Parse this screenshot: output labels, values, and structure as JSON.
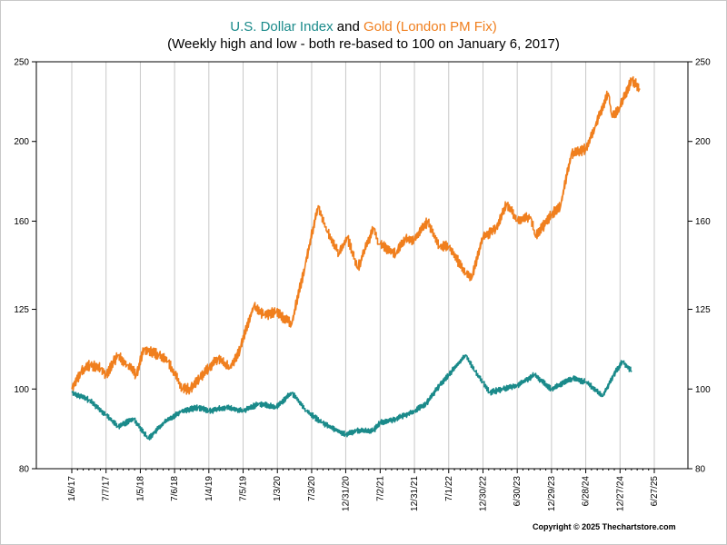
{
  "title": {
    "series1_name": "U.S. Dollar Index",
    "connector": " and ",
    "series2_name": "Gold (London PM Fix)",
    "subtitle": "(Weekly high and low - both re-based to 100 on January 6, 2017)"
  },
  "copyright": "Copyright © 2025 Thechartstore.com",
  "colors": {
    "usd": "#1a8a8a",
    "gold": "#f07f1e",
    "grid": "#c8c8c8",
    "axis": "#000000"
  },
  "chart_data": {
    "type": "line",
    "y_scale": "log",
    "ylim": [
      80,
      250
    ],
    "y_ticks": [
      80,
      100,
      125,
      160,
      200,
      250
    ],
    "x_ticks": [
      "1/6/17",
      "7/7/17",
      "1/5/18",
      "7/6/18",
      "1/4/19",
      "7/5/19",
      "1/3/20",
      "7/3/20",
      "12/31/20",
      "7/2/21",
      "12/31/21",
      "7/1/22",
      "12/30/22",
      "6/30/23",
      "12/29/23",
      "6/28/24",
      "12/27/24",
      "6/27/25"
    ],
    "grid": "vertical",
    "series": [
      {
        "name": "U.S. Dollar Index",
        "color": "#1a8a8a",
        "x": [
          "2017-01-06",
          "2017-04-07",
          "2017-07-07",
          "2017-09-08",
          "2017-12-01",
          "2018-02-16",
          "2018-05-11",
          "2018-08-10",
          "2018-11-09",
          "2019-01-04",
          "2019-04-05",
          "2019-07-05",
          "2019-09-27",
          "2019-12-27",
          "2020-03-20",
          "2020-06-05",
          "2020-08-28",
          "2020-12-31",
          "2021-02-26",
          "2021-05-28",
          "2021-07-02",
          "2021-09-24",
          "2021-12-31",
          "2022-03-04",
          "2022-05-13",
          "2022-07-01",
          "2022-09-30",
          "2022-11-18",
          "2022-12-30",
          "2023-02-03",
          "2023-04-14",
          "2023-06-30",
          "2023-09-29",
          "2023-12-29",
          "2024-04-19",
          "2024-06-28",
          "2024-09-27",
          "2024-11-22",
          "2025-01-10",
          "2025-02-28"
        ],
        "values": [
          99,
          97,
          93,
          90,
          92,
          87,
          91,
          94,
          95,
          94,
          95,
          94,
          96,
          95,
          99,
          94,
          91,
          88,
          89,
          89,
          91,
          92,
          94,
          96,
          101,
          104,
          110,
          105,
          102,
          99,
          100,
          101,
          104,
          100,
          103,
          102,
          98,
          104,
          108,
          105
        ]
      },
      {
        "name": "Gold (London PM Fix)",
        "color": "#f07f1e",
        "x": [
          "2017-01-06",
          "2017-02-24",
          "2017-04-14",
          "2017-06-09",
          "2017-07-07",
          "2017-09-08",
          "2017-10-27",
          "2017-12-15",
          "2018-01-26",
          "2018-04-13",
          "2018-06-01",
          "2018-08-17",
          "2018-09-28",
          "2018-11-16",
          "2019-01-04",
          "2019-02-22",
          "2019-04-26",
          "2019-06-21",
          "2019-08-30",
          "2019-10-25",
          "2019-12-27",
          "2020-03-20",
          "2020-05-29",
          "2020-08-07",
          "2020-09-25",
          "2020-11-27",
          "2021-01-08",
          "2021-03-05",
          "2021-05-28",
          "2021-06-25",
          "2021-07-02",
          "2021-09-24",
          "2021-11-12",
          "2021-12-31",
          "2022-03-11",
          "2022-05-13",
          "2022-07-01",
          "2022-09-30",
          "2022-11-04",
          "2022-12-30",
          "2023-03-10",
          "2023-05-05",
          "2023-06-30",
          "2023-09-08",
          "2023-10-06",
          "2023-12-29",
          "2024-02-16",
          "2024-04-12",
          "2024-06-28",
          "2024-08-16",
          "2024-10-25",
          "2024-11-15",
          "2024-12-27",
          "2025-02-28",
          "2025-04-11"
        ],
        "values": [
          100,
          105,
          107,
          106,
          104,
          110,
          107,
          104,
          112,
          110,
          108,
          100,
          100,
          103,
          106,
          109,
          106,
          112,
          126,
          123,
          124,
          120,
          141,
          167,
          155,
          146,
          153,
          140,
          157,
          150,
          150,
          146,
          152,
          152,
          160,
          149,
          149,
          138,
          137,
          153,
          157,
          168,
          160,
          162,
          153,
          163,
          167,
          193,
          196,
          208,
          229,
          214,
          220,
          238,
          232
        ]
      }
    ]
  }
}
